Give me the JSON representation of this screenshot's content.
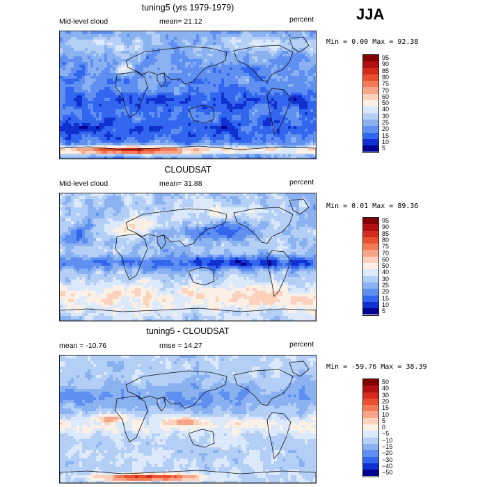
{
  "season": "JJA",
  "panels": [
    {
      "title": "tuning5 (yrs 1979-1979)",
      "left": "Mid-level cloud",
      "center": "mean=  21.12",
      "right": "percent",
      "minmax": "Min =   0.00 Max =  92.38",
      "colorbar": [
        "95",
        "90",
        "85",
        "80",
        "75",
        "70",
        "60",
        "50",
        "40",
        "30",
        "25",
        "20",
        "15",
        "10",
        "5"
      ],
      "map_style": "model"
    },
    {
      "title": "CLOUDSAT",
      "left": "Mid-level cloud",
      "center": "mean=  31.88",
      "right": "percent",
      "minmax": "Min =   0.01 Max =  89.36",
      "colorbar": [
        "95",
        "90",
        "85",
        "80",
        "75",
        "70",
        "60",
        "50",
        "40",
        "30",
        "25",
        "20",
        "15",
        "10",
        "5"
      ],
      "map_style": "obs"
    },
    {
      "title": "tuning5 - CLOUDSAT",
      "left": "mean = -10.76",
      "center": "rmse =  14.27",
      "right": "percent",
      "minmax": "Min = -59.76 Max =  38.39",
      "colorbar": [
        "50",
        "40",
        "30",
        "20",
        "15",
        "10",
        "5",
        "0",
        "−5",
        "−10",
        "−15",
        "−20",
        "−30",
        "−40",
        "−50"
      ],
      "map_style": "diff"
    }
  ],
  "palette": [
    "#800000",
    "#b01010",
    "#d42a1c",
    "#e8502f",
    "#f27a55",
    "#f8a587",
    "#fcd2bc",
    "#fbf0e6",
    "#dce9fb",
    "#b4cff6",
    "#8ab2f0",
    "#5f8ff0",
    "#3366ee",
    "#1030d0",
    "#000090"
  ]
}
